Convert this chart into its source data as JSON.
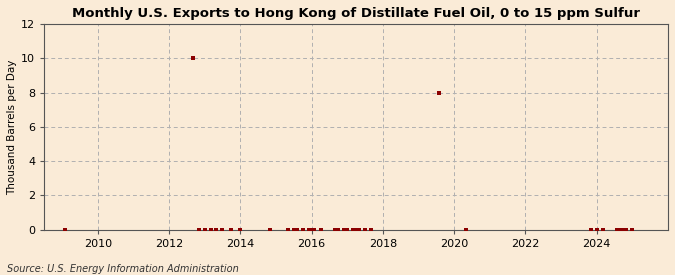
{
  "title": "Monthly U.S. Exports to Hong Kong of Distillate Fuel Oil, 0 to 15 ppm Sulfur",
  "ylabel": "Thousand Barrels per Day",
  "source": "Source: U.S. Energy Information Administration",
  "background_color": "#faebd7",
  "plot_bg_color": "#faebd7",
  "marker_color": "#8b0000",
  "grid_color": "#b0b0b0",
  "ylim": [
    0,
    12
  ],
  "yticks": [
    0,
    2,
    4,
    6,
    8,
    10,
    12
  ],
  "xlim": [
    2008.5,
    2026.0
  ],
  "xticks": [
    2010,
    2012,
    2014,
    2016,
    2018,
    2020,
    2022,
    2024
  ],
  "data_points": [
    [
      2009.08,
      0.0
    ],
    [
      2012.67,
      10.0
    ],
    [
      2012.83,
      0.0
    ],
    [
      2013.0,
      0.0
    ],
    [
      2013.17,
      0.0
    ],
    [
      2013.33,
      0.0
    ],
    [
      2013.5,
      0.0
    ],
    [
      2013.75,
      0.0
    ],
    [
      2014.0,
      0.0
    ],
    [
      2014.83,
      0.0
    ],
    [
      2015.33,
      0.0
    ],
    [
      2015.5,
      0.0
    ],
    [
      2015.58,
      0.0
    ],
    [
      2015.75,
      0.0
    ],
    [
      2015.92,
      0.0
    ],
    [
      2016.0,
      0.0
    ],
    [
      2016.08,
      0.0
    ],
    [
      2016.25,
      0.0
    ],
    [
      2016.67,
      0.0
    ],
    [
      2016.75,
      0.0
    ],
    [
      2016.92,
      0.0
    ],
    [
      2017.0,
      0.0
    ],
    [
      2017.17,
      0.0
    ],
    [
      2017.25,
      0.0
    ],
    [
      2017.33,
      0.0
    ],
    [
      2017.5,
      0.0
    ],
    [
      2017.67,
      0.0
    ],
    [
      2019.58,
      8.0
    ],
    [
      2020.33,
      0.0
    ],
    [
      2023.83,
      0.0
    ],
    [
      2024.0,
      0.0
    ],
    [
      2024.17,
      0.0
    ],
    [
      2024.58,
      0.0
    ],
    [
      2024.67,
      0.0
    ],
    [
      2024.75,
      0.0
    ],
    [
      2024.83,
      0.0
    ],
    [
      2025.0,
      0.0
    ]
  ],
  "title_fontsize": 9.5,
  "tick_fontsize": 8.0,
  "ylabel_fontsize": 7.5,
  "source_fontsize": 7.0
}
